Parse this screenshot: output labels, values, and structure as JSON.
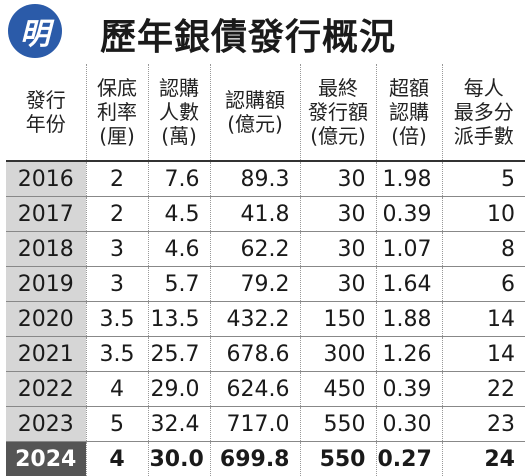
{
  "header": {
    "logo": "明",
    "title": "歷年銀債發行概況"
  },
  "table": {
    "columns": [
      [
        "發行",
        "年份"
      ],
      [
        "保底",
        "利率",
        "(厘)"
      ],
      [
        "認購",
        "人數",
        "(萬)"
      ],
      [
        "認購額",
        "(億元)"
      ],
      [
        "最終",
        "發行額",
        "(億元)"
      ],
      [
        "超額",
        "認購",
        "(倍)"
      ],
      [
        "每人",
        "最多分",
        "派手數"
      ]
    ],
    "rows": [
      [
        "2016",
        "2",
        "7.6",
        "89.3",
        "30",
        "1.98",
        "5"
      ],
      [
        "2017",
        "2",
        "4.5",
        "41.8",
        "30",
        "0.39",
        "10"
      ],
      [
        "2018",
        "3",
        "4.6",
        "62.2",
        "30",
        "1.07",
        "8"
      ],
      [
        "2019",
        "3",
        "5.7",
        "79.2",
        "30",
        "1.64",
        "6"
      ],
      [
        "2020",
        "3.5",
        "13.5",
        "432.2",
        "150",
        "1.88",
        "14"
      ],
      [
        "2021",
        "3.5",
        "25.7",
        "678.6",
        "300",
        "1.26",
        "14"
      ],
      [
        "2022",
        "4",
        "29.0",
        "624.6",
        "450",
        "0.39",
        "22"
      ],
      [
        "2023",
        "5",
        "32.4",
        "717.0",
        "550",
        "0.30",
        "23"
      ],
      [
        "2024",
        "4",
        "30.0",
        "699.8",
        "550",
        "0.27",
        "24"
      ]
    ]
  }
}
